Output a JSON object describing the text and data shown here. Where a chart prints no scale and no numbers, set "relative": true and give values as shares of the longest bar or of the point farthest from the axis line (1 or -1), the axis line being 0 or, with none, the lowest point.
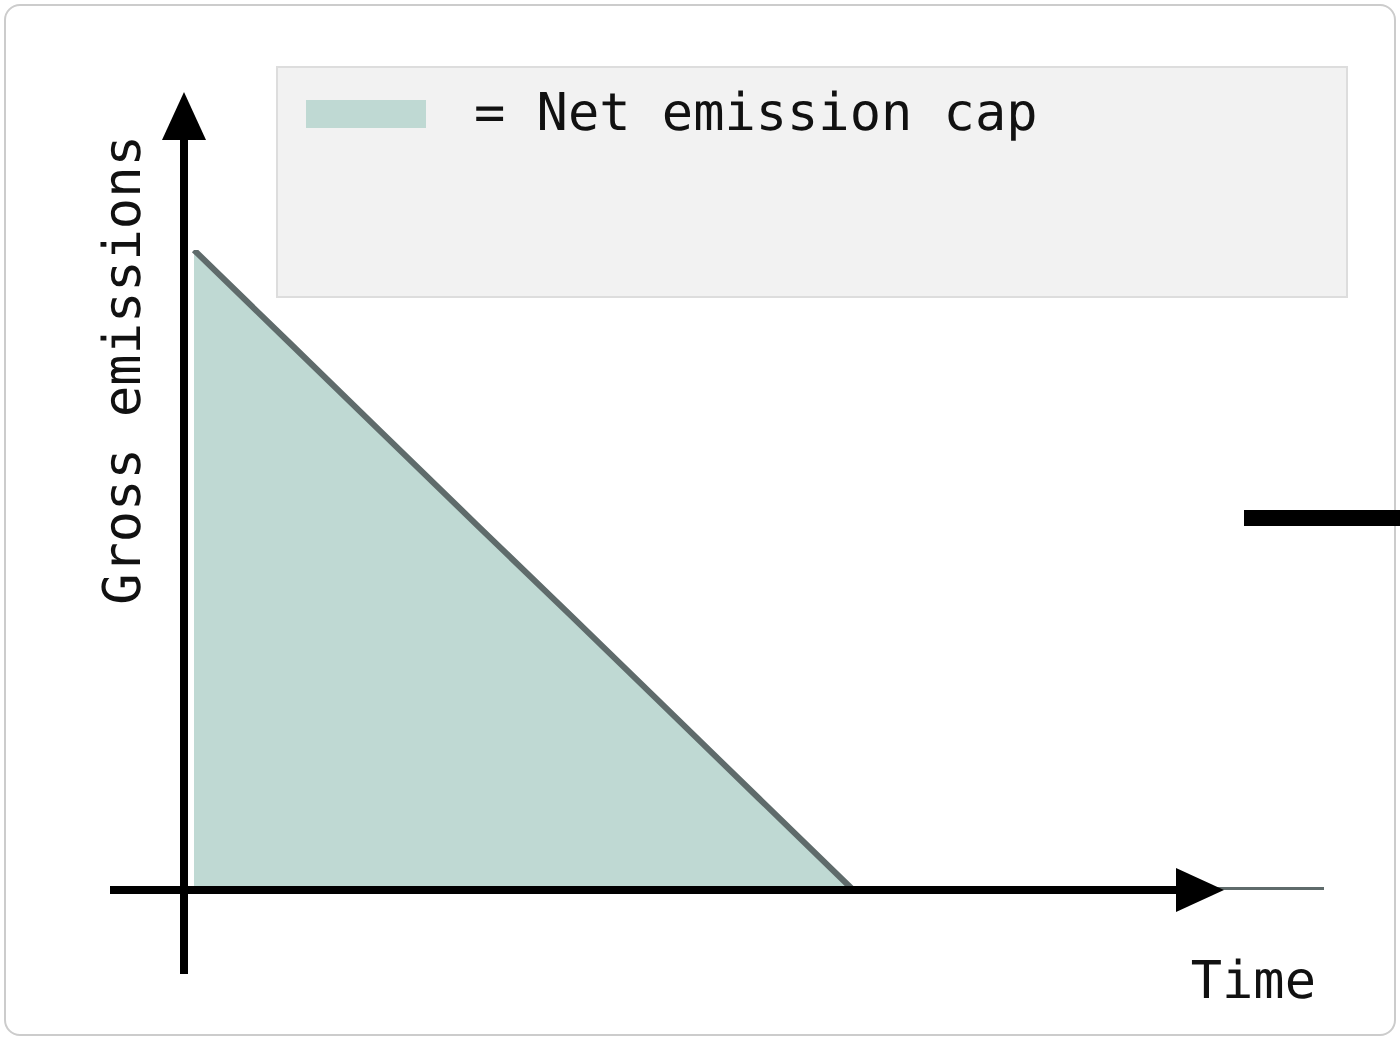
{
  "chart_data": {
    "type": "area",
    "xlabel": "Time",
    "ylabel": "Gross emissions",
    "relative": true,
    "legend": "top",
    "categories": [
      null,
      null,
      null,
      null,
      null,
      null,
      null,
      null,
      null,
      null,
      null,
      null,
      null
    ],
    "series": [
      {
        "name": "= Net emission cap",
        "color": "#bfd9d3",
        "values": [
          1,
          0.857,
          0.714,
          0.571,
          0.429,
          0.286,
          0.143,
          0,
          0,
          0,
          0,
          0,
          0
        ]
      }
    ]
  }
}
